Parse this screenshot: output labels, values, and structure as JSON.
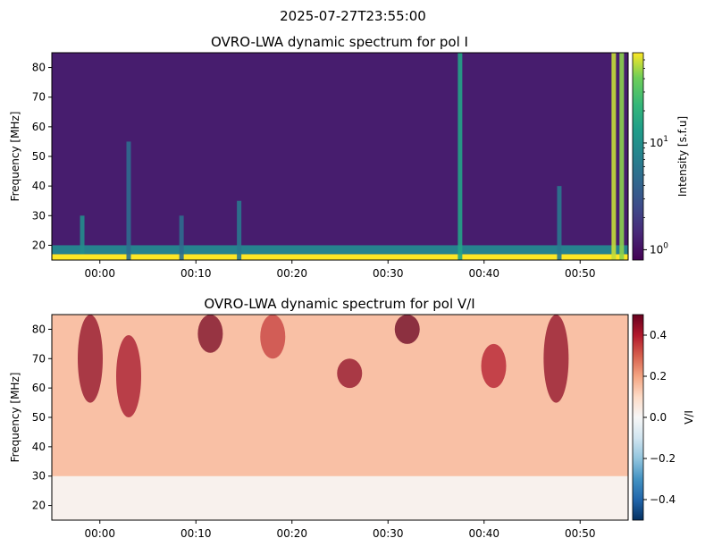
{
  "suptitle": "2025-07-27T23:55:00",
  "chart_data": [
    {
      "type": "heatmap",
      "title": "OVRO-LWA dynamic spectrum for pol I",
      "xlabel": "",
      "ylabel": "Frequency [MHz]",
      "x_range": [
        "2025-07-27T23:55:00",
        "2025-07-28T00:55:00"
      ],
      "x_ticks": [
        "00:00",
        "00:10",
        "00:20",
        "00:30",
        "00:40",
        "00:50"
      ],
      "ylim": [
        15,
        85
      ],
      "y_ticks": [
        20,
        30,
        40,
        50,
        60,
        70,
        80
      ],
      "colormap": "viridis",
      "color_scale": "log",
      "colorbar": {
        "label": "Intensity [s.f.u]",
        "ticks": [
          "10^0",
          "10^1"
        ],
        "range": [
          0.8,
          70
        ]
      },
      "features": [
        {
          "kind": "band",
          "freq_range": [
            15,
            17
          ],
          "level": 1.0
        },
        {
          "kind": "band",
          "freq_range": [
            17,
            20
          ],
          "level": 0.5
        },
        {
          "kind": "burst",
          "time": "2025-07-28T00:37:30",
          "freq_range": [
            15,
            85
          ],
          "level": 0.65
        },
        {
          "kind": "burst",
          "time": "2025-07-28T00:53:30",
          "freq_range": [
            15,
            85
          ],
          "level": 0.95
        },
        {
          "kind": "burst",
          "time": "2025-07-28T00:54:20",
          "freq_range": [
            15,
            85
          ],
          "level": 0.9
        },
        {
          "kind": "burst",
          "time": "2025-07-27T23:58:10",
          "freq_range": [
            17,
            30
          ],
          "level": 0.55
        },
        {
          "kind": "burst",
          "time": "2025-07-28T00:03:00",
          "freq_range": [
            15,
            55
          ],
          "level": 0.4
        },
        {
          "kind": "burst",
          "time": "2025-07-28T00:08:30",
          "freq_range": [
            15,
            30
          ],
          "level": 0.4
        },
        {
          "kind": "burst",
          "time": "2025-07-28T00:14:30",
          "freq_range": [
            15,
            35
          ],
          "level": 0.45
        },
        {
          "kind": "burst",
          "time": "2025-07-28T00:47:50",
          "freq_range": [
            15,
            40
          ],
          "level": 0.45
        }
      ]
    },
    {
      "type": "heatmap",
      "title": "OVRO-LWA dynamic spectrum for pol V/I",
      "xlabel": "",
      "ylabel": "Frequency [MHz]",
      "x_range": [
        "2025-07-27T23:55:00",
        "2025-07-28T00:55:00"
      ],
      "x_ticks": [
        "00:00",
        "00:10",
        "00:20",
        "00:30",
        "00:40",
        "00:50"
      ],
      "ylim": [
        15,
        85
      ],
      "y_ticks": [
        20,
        30,
        40,
        50,
        60,
        70,
        80
      ],
      "colormap": "RdBu_r",
      "color_scale": "linear",
      "colorbar": {
        "label": "V/I",
        "ticks": [
          "0.4",
          "0.2",
          "0.0",
          "−0.2",
          "−0.4"
        ],
        "range": [
          -0.5,
          0.5
        ]
      },
      "features": [
        {
          "kind": "gradient",
          "freq_range": [
            15,
            30
          ],
          "value": 0.02
        },
        {
          "kind": "gradient",
          "freq_range": [
            30,
            85
          ],
          "value": 0.15
        },
        {
          "kind": "patch",
          "time": "2025-07-27T23:59:00",
          "freq_range": [
            55,
            85
          ],
          "value": 0.45
        },
        {
          "kind": "patch",
          "time": "2025-07-28T00:03:00",
          "freq_range": [
            50,
            78
          ],
          "value": 0.42
        },
        {
          "kind": "patch",
          "time": "2025-07-28T00:11:30",
          "freq_range": [
            72,
            85
          ],
          "value": 0.48
        },
        {
          "kind": "patch",
          "time": "2025-07-28T00:18:00",
          "freq_range": [
            70,
            85
          ],
          "value": 0.35
        },
        {
          "kind": "patch",
          "time": "2025-07-28T00:26:00",
          "freq_range": [
            60,
            70
          ],
          "value": 0.45
        },
        {
          "kind": "patch",
          "time": "2025-07-28T00:32:00",
          "freq_range": [
            75,
            85
          ],
          "value": 0.5
        },
        {
          "kind": "patch",
          "time": "2025-07-28T00:41:00",
          "freq_range": [
            60,
            75
          ],
          "value": 0.4
        },
        {
          "kind": "patch",
          "time": "2025-07-28T00:47:30",
          "freq_range": [
            55,
            85
          ],
          "value": 0.45
        }
      ]
    }
  ]
}
